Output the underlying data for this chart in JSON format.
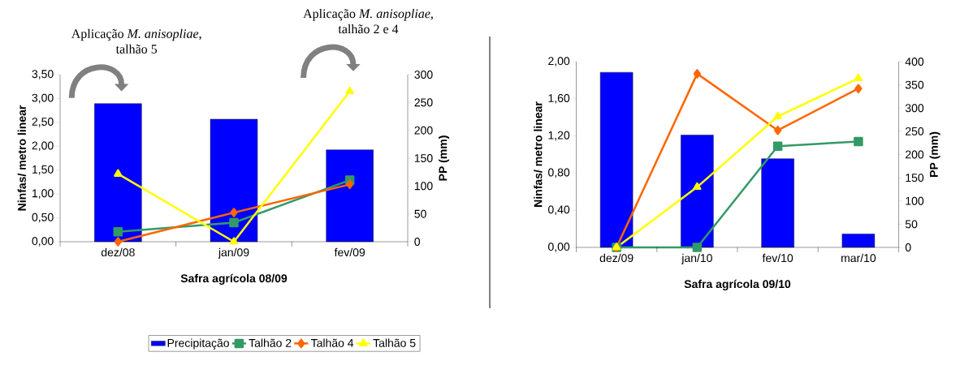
{
  "chart_data": [
    {
      "type": "bar",
      "categories": [
        "dez/08",
        "jan/09",
        "fev/09"
      ],
      "xlabel": "Safra agrícola 08/09",
      "ylabel": "Ninfas/ metro linear",
      "y2label": "PP (mm)",
      "ylim": [
        0,
        3.5
      ],
      "yticks": [
        {
          "value": 0,
          "label": "0,00"
        },
        {
          "value": 0.5,
          "label": "0,50"
        },
        {
          "value": 1,
          "label": "1,00"
        },
        {
          "value": 1.5,
          "label": "1,50"
        },
        {
          "value": 2,
          "label": "2,00"
        },
        {
          "value": 2.5,
          "label": "2,50"
        },
        {
          "value": 3,
          "label": "3,00"
        },
        {
          "value": 3.5,
          "label": "3,50"
        }
      ],
      "y2lim": [
        0,
        300
      ],
      "y2ticks": [
        0,
        50,
        100,
        150,
        200,
        250,
        300
      ],
      "series": [
        {
          "name": "Precipitação",
          "axis": "y2",
          "color": "#0000ff",
          "values": [
            248,
            220,
            165
          ]
        },
        {
          "name": "Talhão 2",
          "type": "line",
          "marker": "square",
          "color": "#339966",
          "values": [
            0.21,
            0.4,
            1.29
          ]
        },
        {
          "name": "Talhão 4",
          "type": "line",
          "marker": "diamond",
          "color": "#ff6600",
          "values": [
            0,
            0.61,
            1.2
          ]
        },
        {
          "name": "Talhão 5",
          "type": "line",
          "marker": "triangle",
          "color": "#ffff00",
          "values": [
            1.42,
            0,
            3.15
          ]
        }
      ],
      "legend": "bottom",
      "annotations": [
        "Aplicação *M. anisopliae*, talhão 5",
        "Aplicação *M. anisopliae*, talhão 2 e 4"
      ]
    },
    {
      "type": "bar",
      "categories": [
        "dez/09",
        "jan/10",
        "fev/10",
        "mar/10"
      ],
      "xlabel": "Safra agrícola 09/10",
      "ylabel": "Ninfas/ metro linear",
      "y2label": "PP (mm)",
      "ylim": [
        0,
        2
      ],
      "yticks": [
        {
          "value": 0,
          "label": "0,00"
        },
        {
          "value": 0.4,
          "label": "0,40"
        },
        {
          "value": 0.8,
          "label": "0,80"
        },
        {
          "value": 1.2,
          "label": "1,20"
        },
        {
          "value": 1.6,
          "label": "1,60"
        },
        {
          "value": 2,
          "label": "2,00"
        }
      ],
      "y2lim": [
        0,
        400
      ],
      "y2ticks": [
        0,
        50,
        100,
        150,
        200,
        250,
        300,
        350,
        400
      ],
      "series": [
        {
          "axis": "y2",
          "color": "#0000ff",
          "values": [
            377,
            242,
            191,
            29
          ]
        },
        {
          "type": "line",
          "marker": "square",
          "color": "#339966",
          "values": [
            0,
            0,
            1.09,
            1.14
          ]
        },
        {
          "type": "line",
          "marker": "diamond",
          "color": "#ff6600",
          "values": [
            0,
            1.87,
            1.26,
            1.71
          ]
        },
        {
          "type": "line",
          "marker": "triangle",
          "color": "#ffff00",
          "values": [
            0,
            0.65,
            1.41,
            1.82
          ]
        }
      ]
    }
  ]
}
